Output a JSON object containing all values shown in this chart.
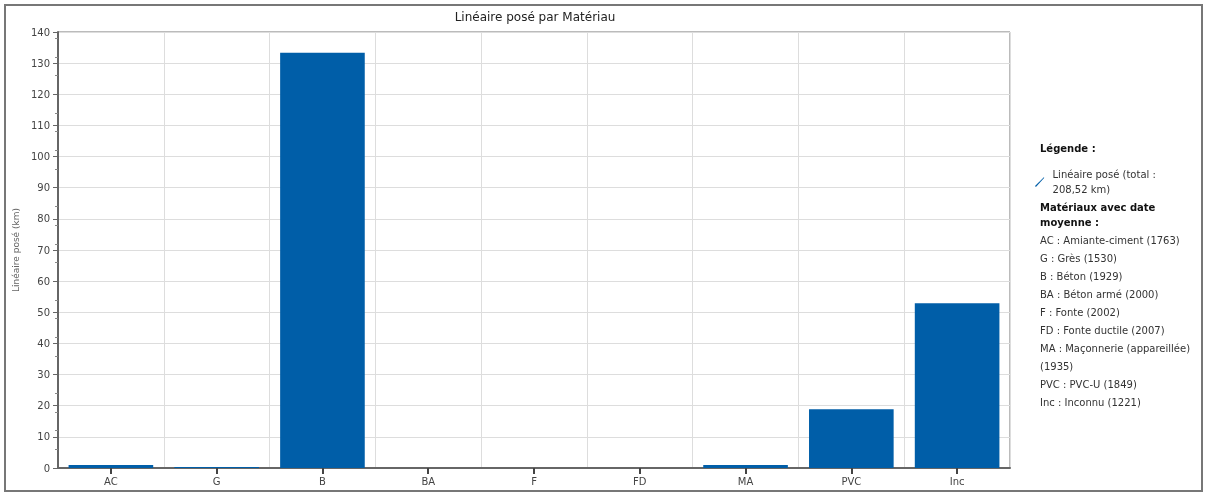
{
  "chart_data": {
    "type": "bar",
    "title": "Linéaire posé par Matériau",
    "ylabel": "Linéaire posé (km)",
    "categories": [
      "AC",
      "G",
      "B",
      "BA",
      "F",
      "FD",
      "MA",
      "PVC",
      "Inc"
    ],
    "series": [
      {
        "name": "Linéaire posé (total : 208,52 km)",
        "color": "#005ea8",
        "values": [
          1,
          0.3,
          133.3,
          0,
          0,
          0,
          1,
          18.9,
          52.9
        ]
      }
    ],
    "ylim": [
      0,
      140
    ],
    "yticks": [
      0,
      10,
      20,
      30,
      40,
      50,
      60,
      70,
      80,
      90,
      100,
      110,
      120,
      130,
      140
    ],
    "grid": true,
    "legend": "right",
    "legend_title": "Légende :",
    "annotations": [
      "Matériaux avec date moyenne :",
      "AC : Amiante-ciment (1763)",
      "G : Grès (1530)",
      "B : Béton (1929)",
      "BA : Béton armé (2000)",
      "F : Fonte (2002)",
      "FD : Fonte ductile (2007)",
      "MA : Maçonnerie (appareillée) (1935)",
      "PVC : PVC-U (1849)",
      "Inc : Inconnu (1221)"
    ]
  }
}
